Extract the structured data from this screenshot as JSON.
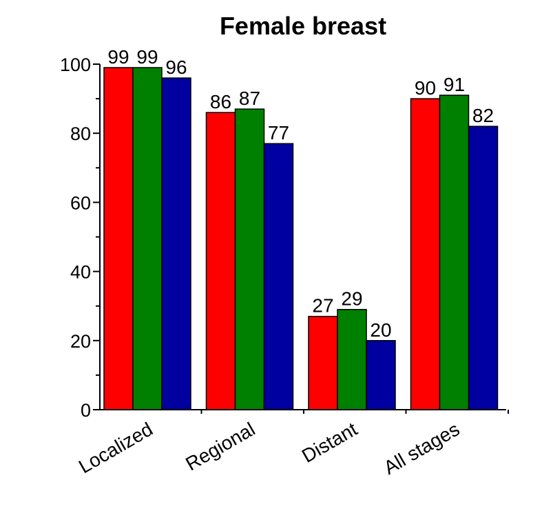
{
  "chart_data": {
    "type": "bar",
    "title": "Female breast",
    "xlabel": "",
    "ylabel": "",
    "ylim": [
      0,
      100
    ],
    "yticks": [
      "0",
      "20",
      "40",
      "60",
      "80",
      "100"
    ],
    "categories": [
      "Localized",
      "Regional",
      "Distant",
      "All stages"
    ],
    "series": [
      {
        "name": "",
        "color": "#ff0000",
        "values": [
          99,
          86,
          27,
          90
        ]
      },
      {
        "name": "",
        "color": "#008000",
        "values": [
          99,
          87,
          29,
          91
        ]
      },
      {
        "name": "",
        "color": "#0000a0",
        "values": [
          96,
          77,
          20,
          82
        ]
      }
    ],
    "data_labels": [
      [
        "99",
        "86",
        "27",
        "90"
      ],
      [
        "99",
        "87",
        "29",
        "91"
      ],
      [
        "96",
        "77",
        "20",
        "82"
      ]
    ],
    "grid": false,
    "legend": "none"
  }
}
